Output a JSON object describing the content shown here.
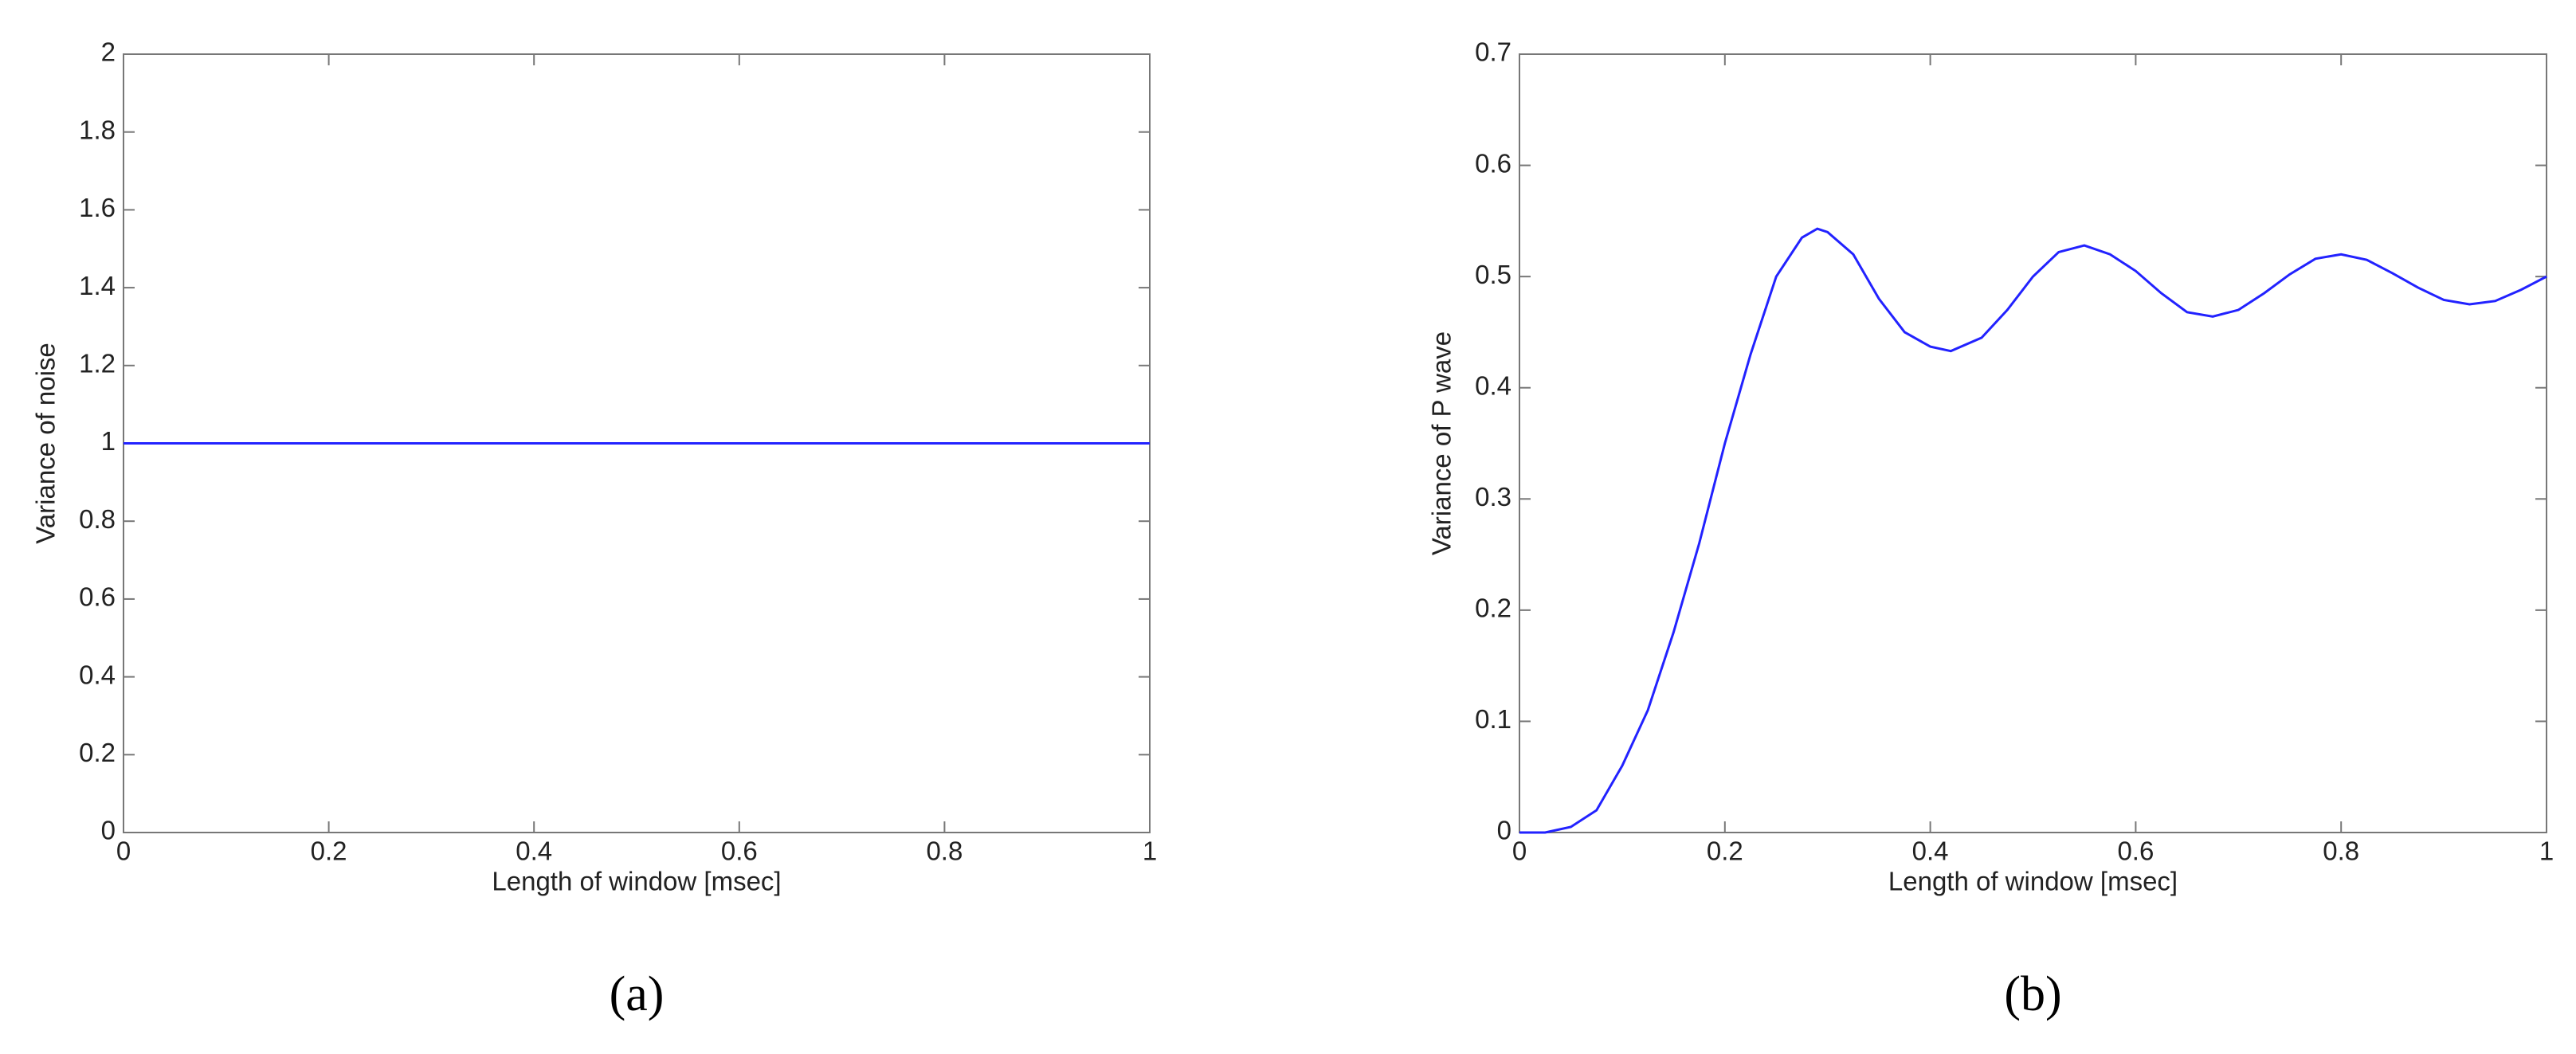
{
  "chart_data": [
    {
      "type": "line",
      "caption": "(a)",
      "xlabel": "Length of window [msec]",
      "ylabel": "Variance of noise",
      "xlim": [
        0,
        1
      ],
      "ylim": [
        0,
        2
      ],
      "xticks": [
        0,
        0.2,
        0.4,
        0.6,
        0.8,
        1
      ],
      "yticks": [
        0,
        0.2,
        0.4,
        0.6,
        0.8,
        1,
        1.2,
        1.4,
        1.6,
        1.8,
        2
      ],
      "series": [
        {
          "color": "#2222ff",
          "x": [
            0,
            1
          ],
          "values": [
            1,
            1
          ]
        }
      ]
    },
    {
      "type": "line",
      "caption": "(b)",
      "xlabel": "Length of window [msec]",
      "ylabel": "Variance of P wave",
      "xlim": [
        0,
        1
      ],
      "ylim": [
        0,
        0.7
      ],
      "xticks": [
        0,
        0.2,
        0.4,
        0.6,
        0.8,
        1
      ],
      "yticks": [
        0,
        0.1,
        0.2,
        0.3,
        0.4,
        0.5,
        0.6,
        0.7
      ],
      "series": [
        {
          "color": "#2222ff",
          "x": [
            0,
            0.025,
            0.05,
            0.075,
            0.1,
            0.125,
            0.15,
            0.175,
            0.2,
            0.225,
            0.25,
            0.275,
            0.29,
            0.3,
            0.325,
            0.35,
            0.375,
            0.4,
            0.42,
            0.45,
            0.475,
            0.5,
            0.525,
            0.55,
            0.575,
            0.6,
            0.625,
            0.65,
            0.675,
            0.7,
            0.725,
            0.75,
            0.775,
            0.8,
            0.825,
            0.85,
            0.875,
            0.9,
            0.925,
            0.95,
            0.975,
            1
          ],
          "values": [
            0,
            0,
            0.005,
            0.02,
            0.06,
            0.11,
            0.18,
            0.26,
            0.35,
            0.43,
            0.5,
            0.535,
            0.543,
            0.54,
            0.52,
            0.48,
            0.45,
            0.437,
            0.433,
            0.445,
            0.47,
            0.5,
            0.522,
            0.528,
            0.52,
            0.505,
            0.485,
            0.468,
            0.464,
            0.47,
            0.485,
            0.502,
            0.516,
            0.52,
            0.515,
            0.503,
            0.49,
            0.479,
            0.475,
            0.478,
            0.488,
            0.5
          ]
        }
      ]
    }
  ]
}
